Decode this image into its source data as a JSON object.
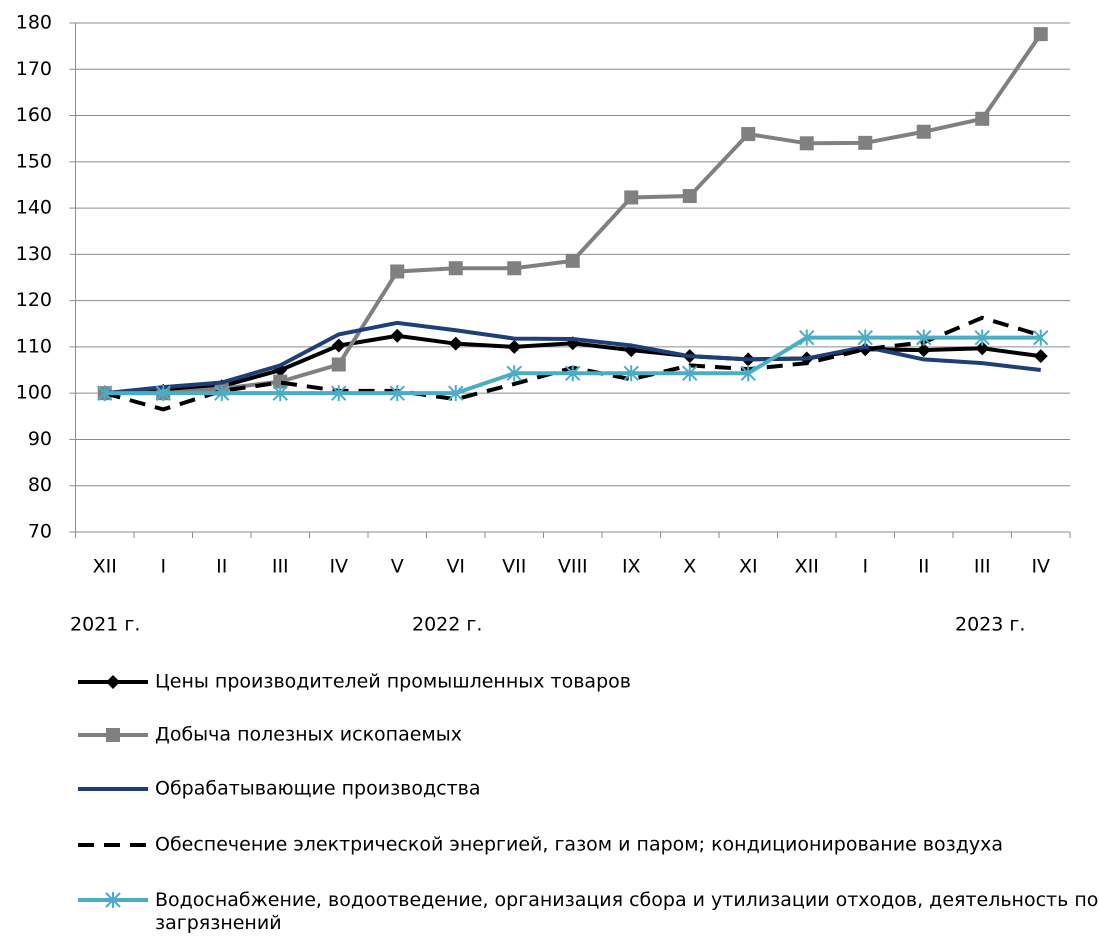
{
  "chart_data": {
    "type": "line",
    "categories": [
      "XII",
      "I",
      "II",
      "III",
      "IV",
      "V",
      "VI",
      "VII",
      "VIII",
      "IX",
      "X",
      "XI",
      "XII",
      "I",
      "II",
      "III",
      "IV"
    ],
    "annotations": [
      "2021 г.",
      "2022 г.",
      "2023 г."
    ],
    "ylim": [
      70,
      180
    ],
    "yticks": [
      70,
      80,
      90,
      100,
      110,
      120,
      130,
      140,
      150,
      160,
      170,
      180
    ],
    "grid": true,
    "series": [
      {
        "name": "Цены производителей промышленных товаров",
        "color": "#000000",
        "marker": "diamond",
        "dash": false,
        "values": [
          100,
          100.5,
          101.5,
          105,
          110.3,
          112.4,
          110.7,
          110,
          110.8,
          109.3,
          108,
          107.3,
          107.5,
          109.5,
          109.3,
          109.7,
          108
        ]
      },
      {
        "name": "Добыча полезных ископаемых",
        "color": "#808080",
        "marker": "square",
        "dash": false,
        "values": [
          100,
          100,
          101,
          102.5,
          106.2,
          126.3,
          127,
          127,
          128.6,
          142.3,
          142.6,
          156,
          154,
          154.1,
          156.5,
          159.3,
          177.6
        ]
      },
      {
        "name": "Обрабатывающие производства",
        "color": "#1f3f78",
        "marker": "none",
        "dash": false,
        "values": [
          100,
          101.3,
          102.3,
          106,
          112.7,
          115.2,
          113.6,
          111.8,
          111.7,
          110.3,
          108,
          107.3,
          107.5,
          110,
          107.3,
          106.5,
          105
        ]
      },
      {
        "name": "Обеспечение электрической энергией, газом и паром; кондиционирование воздуха",
        "color": "#000000",
        "marker": "none",
        "dash": true,
        "values": [
          100,
          96.5,
          100.5,
          102.3,
          100.5,
          100.5,
          98.7,
          102,
          105.5,
          103,
          106,
          105.2,
          106.5,
          109.5,
          111,
          116.3,
          112.5
        ]
      },
      {
        "name": "Водоснабжение, водоотведение, организация сбора и утилизации отходов, деятельность по ликвидации загрязнений",
        "color": "#4bacc6",
        "marker": "asterisk",
        "dash": false,
        "values": [
          100,
          100,
          100,
          100,
          100,
          100,
          100,
          104.3,
          104.3,
          104.3,
          104.3,
          104.3,
          112,
          112,
          112,
          112,
          112
        ]
      }
    ]
  }
}
